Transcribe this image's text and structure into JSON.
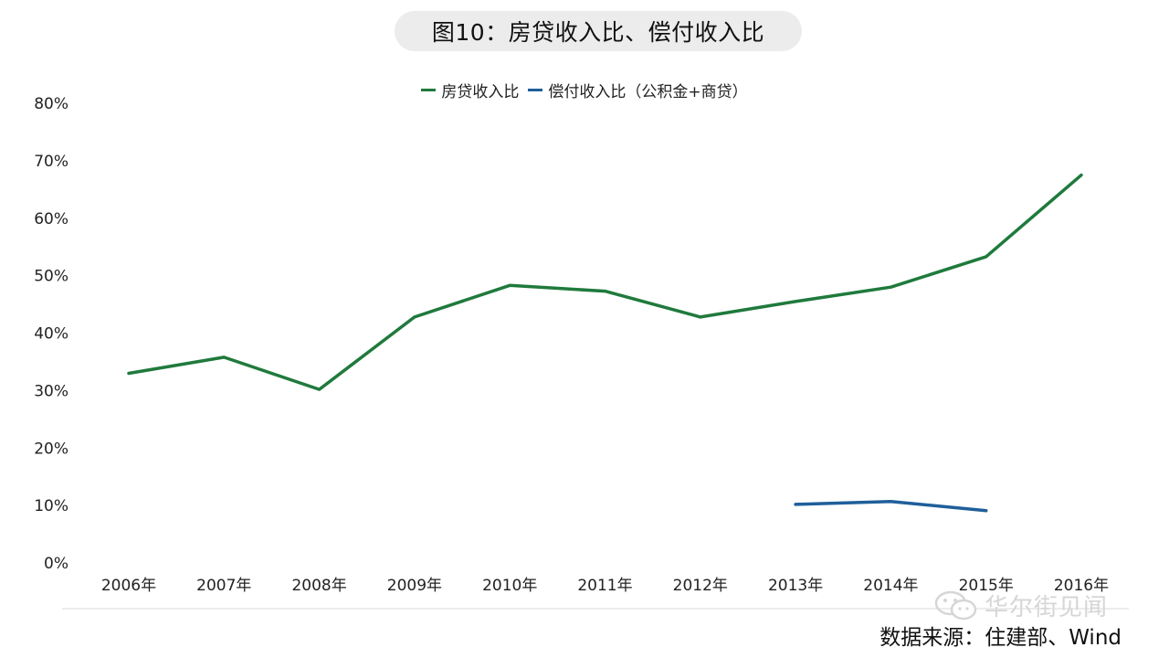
{
  "title": "图10：房贷收入比、偿付收入比",
  "source": "数据来源：住建部、Wind",
  "watermark": "华尔街见闻",
  "colors": {
    "series1": "#1f7a3c",
    "series2": "#1f5f9a",
    "axis": "#d9d9d9",
    "pill": "#ececec"
  },
  "chart_data": {
    "type": "line",
    "title": "图10：房贷收入比、偿付收入比",
    "xlabel": "",
    "ylabel": "",
    "categories": [
      "2006年",
      "2007年",
      "2008年",
      "2009年",
      "2010年",
      "2011年",
      "2012年",
      "2013年",
      "2014年",
      "2015年",
      "2016年"
    ],
    "yticks": [
      "0%",
      "10%",
      "20%",
      "30%",
      "40%",
      "50%",
      "60%",
      "70%",
      "80%"
    ],
    "ylim": [
      0,
      80
    ],
    "grid": false,
    "legend_position": "top-center",
    "series": [
      {
        "name": "房贷收入比",
        "values": [
          33,
          35.8,
          30.2,
          42.8,
          48.3,
          47.3,
          42.8,
          45.5,
          48,
          53.3,
          67.5
        ]
      },
      {
        "name": "偿付收入比（公积金+商贷）",
        "values": [
          null,
          null,
          null,
          null,
          null,
          null,
          null,
          10.2,
          10.7,
          9.1,
          null
        ]
      }
    ]
  }
}
